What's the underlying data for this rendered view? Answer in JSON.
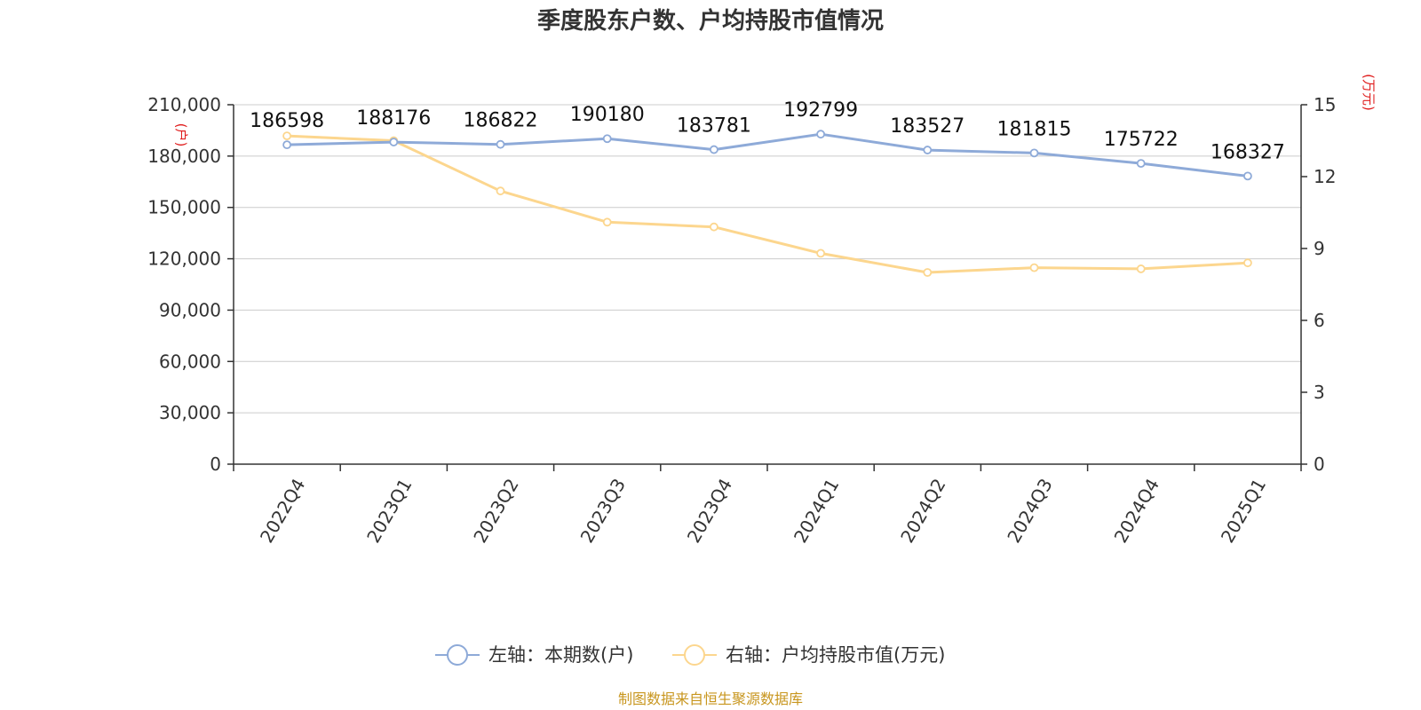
{
  "chart_data": {
    "type": "line",
    "title": "季度股东户数、户均持股市值情况",
    "categories": [
      "2022Q4",
      "2023Q1",
      "2023Q2",
      "2023Q3",
      "2023Q4",
      "2024Q1",
      "2024Q2",
      "2024Q3",
      "2024Q4",
      "2025Q1"
    ],
    "series": [
      {
        "name": "左轴：本期数(户)",
        "axis": "left",
        "color": "#8eaad8",
        "values": [
          186598,
          188176,
          186822,
          190180,
          183781,
          192799,
          183527,
          181815,
          175722,
          168327
        ],
        "labels": [
          "186598",
          "188176",
          "186822",
          "190180",
          "183781",
          "192799",
          "183527",
          "181815",
          "175722",
          "168327"
        ]
      },
      {
        "name": "右轴：户均持股市值(万元)",
        "axis": "right",
        "color": "#fcd68e",
        "values": [
          13.7,
          13.5,
          11.4,
          10.1,
          9.9,
          8.8,
          8.0,
          8.2,
          8.15,
          8.4
        ]
      }
    ],
    "left_axis": {
      "unit": "(户)",
      "min": 0,
      "max": 210000,
      "ticks": [
        0,
        30000,
        60000,
        90000,
        120000,
        150000,
        180000,
        210000
      ],
      "tick_labels": [
        "0",
        "30,000",
        "60,000",
        "90,000",
        "120,000",
        "150,000",
        "180,000",
        "210,000"
      ]
    },
    "right_axis": {
      "unit": "(万元)",
      "min": 0,
      "max": 15,
      "ticks": [
        0,
        3,
        6,
        9,
        12,
        15
      ],
      "tick_labels": [
        "0",
        "3",
        "6",
        "9",
        "12",
        "15"
      ]
    },
    "grid": true,
    "legend_position": "bottom"
  },
  "source": "制图数据来自恒生聚源数据库",
  "colors": {
    "grid": "#cccccc",
    "axis": "#333333"
  }
}
